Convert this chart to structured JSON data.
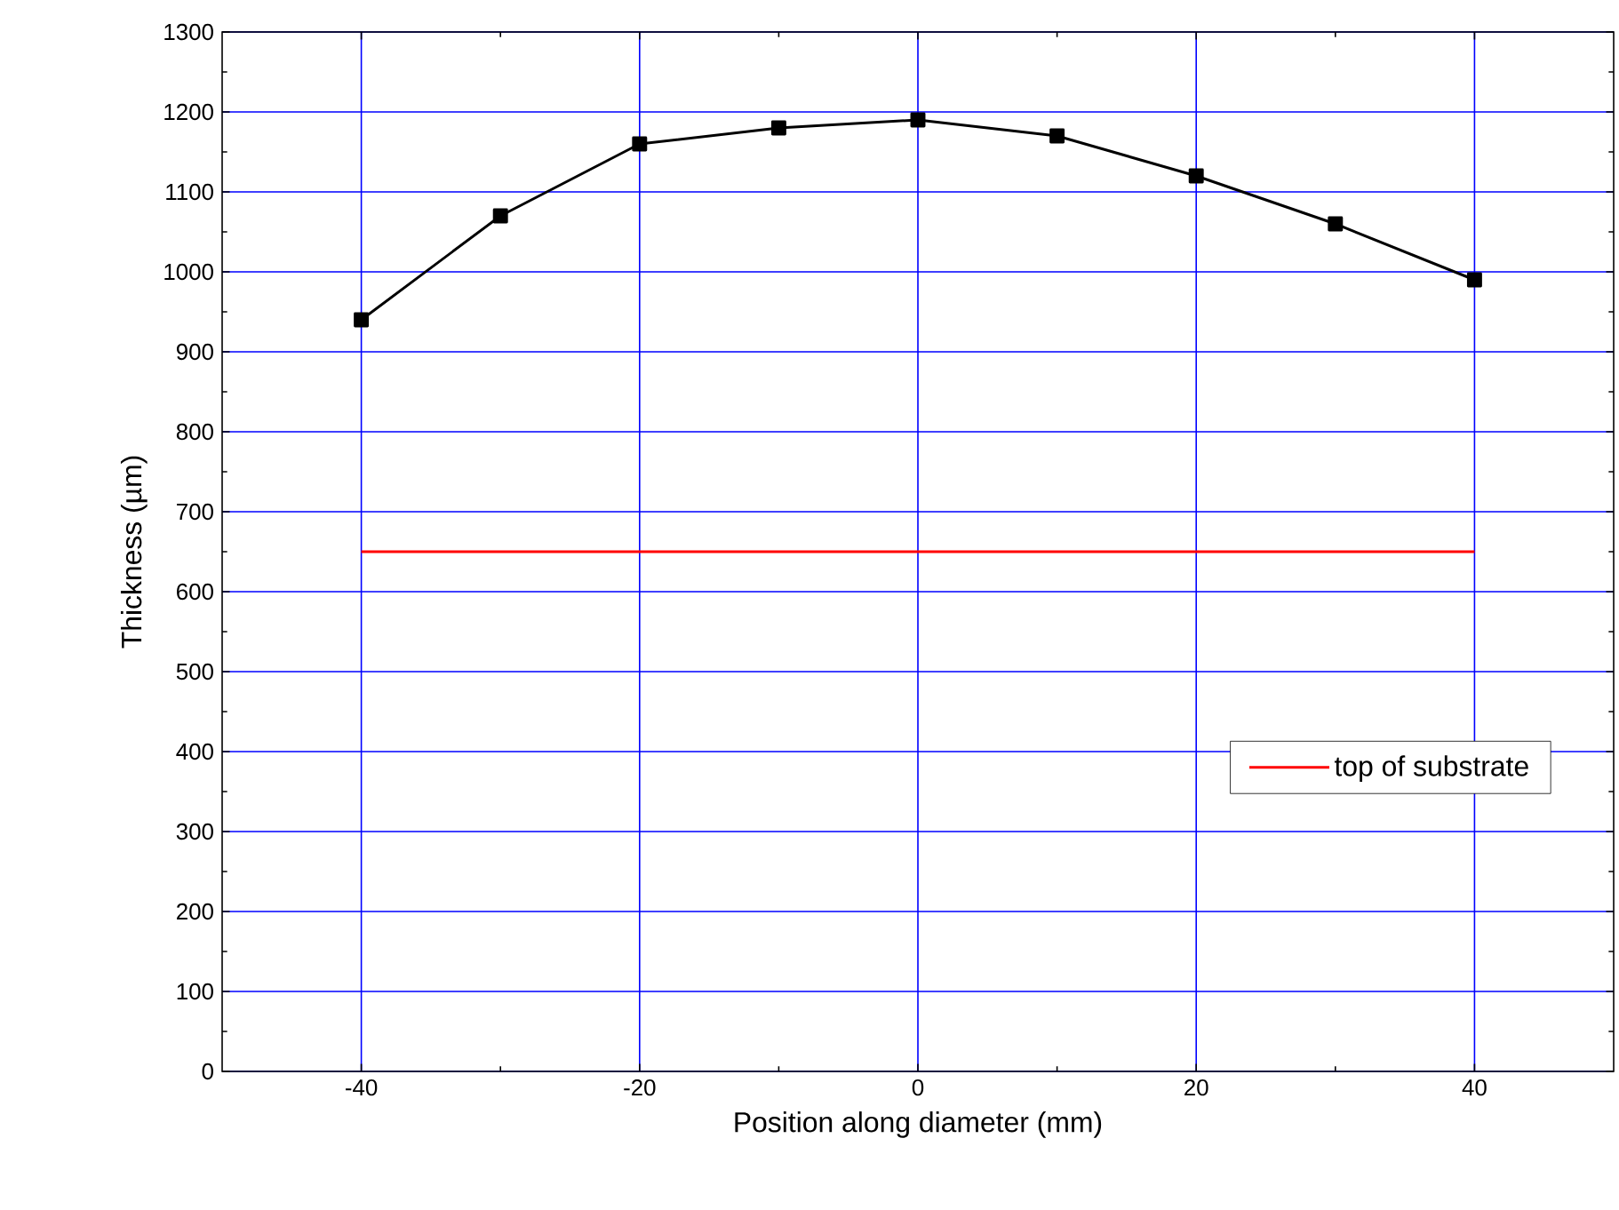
{
  "chart_data": {
    "type": "line",
    "xlabel": "Position along diameter (mm)",
    "ylabel": "Thickness (µm)",
    "xlim": [
      -50,
      50
    ],
    "xticks": [
      -40,
      -20,
      0,
      20,
      40
    ],
    "ylim": [
      0,
      1300
    ],
    "yticks": [
      0,
      100,
      200,
      300,
      400,
      500,
      600,
      700,
      800,
      900,
      1000,
      1100,
      1200,
      1300
    ],
    "grid": true,
    "legend": "bottom right",
    "series": [
      {
        "color": "#000000",
        "marker": "square",
        "x": [
          -40,
          -30,
          -20,
          -10,
          0,
          10,
          20,
          30,
          40
        ],
        "values": [
          940,
          1070,
          1160,
          1180,
          1190,
          1170,
          1120,
          1060,
          990
        ]
      },
      {
        "name": "top of substrate",
        "color": "#ff0000",
        "marker": "none",
        "x": [
          -40,
          40
        ],
        "values": [
          650,
          650
        ]
      }
    ]
  }
}
